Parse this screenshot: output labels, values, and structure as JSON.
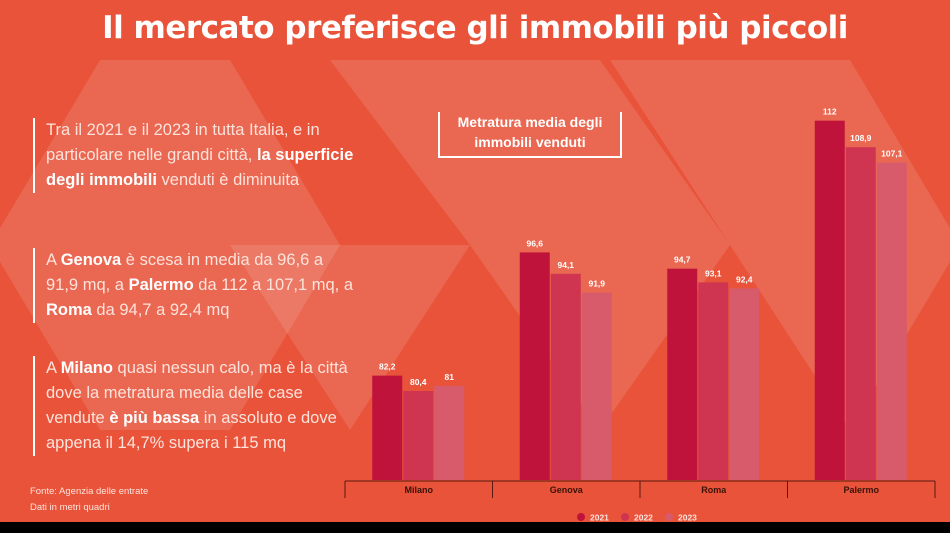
{
  "title": "Il mercato preferisce gli immobili più piccoli",
  "paragraphs": [
    [
      "Tra il 2021 e il 2023 in tutta Italia, e in particolare nelle grandi città, ",
      "la superficie degli immobili",
      " venduti è diminuita"
    ],
    [
      "A ",
      "Genova",
      " è scesa in media da 96,6 a 91,9 mq, a ",
      "Palermo",
      " da 112 a 107,1 mq, a ",
      "Roma",
      " da 94,7 a 92,4 mq"
    ],
    [
      "A ",
      "Milano",
      " quasi nessun calo, ma è la città dove la metratura media delle case vendute ",
      "è più bassa",
      " in assoluto e dove appena il 14,7% supera i 115 mq"
    ]
  ],
  "notes": [
    "Fonte: Agenzia delle entrate",
    "Dati in metri quadri"
  ],
  "chart_data": {
    "type": "bar",
    "title": "Metratura media degli immobili venduti",
    "categories": [
      "Milano",
      "Genova",
      "Roma",
      "Palermo"
    ],
    "series": [
      {
        "name": "2021",
        "color": "#c0133c",
        "values": [
          82.2,
          96.6,
          94.7,
          112
        ],
        "value_labels": [
          "82,2",
          "96,6",
          "94,7",
          "112"
        ]
      },
      {
        "name": "2022",
        "color": "#cf3550",
        "values": [
          80.4,
          94.1,
          93.1,
          108.9
        ],
        "value_labels": [
          "80,4",
          "94,1",
          "93,1",
          "108,9"
        ]
      },
      {
        "name": "2023",
        "color": "#d85b6c",
        "values": [
          81,
          91.9,
          92.4,
          107.1
        ],
        "value_labels": [
          "81",
          "91,9",
          "92,4",
          "107,1"
        ]
      }
    ],
    "ylim": [
      70,
      115
    ]
  }
}
